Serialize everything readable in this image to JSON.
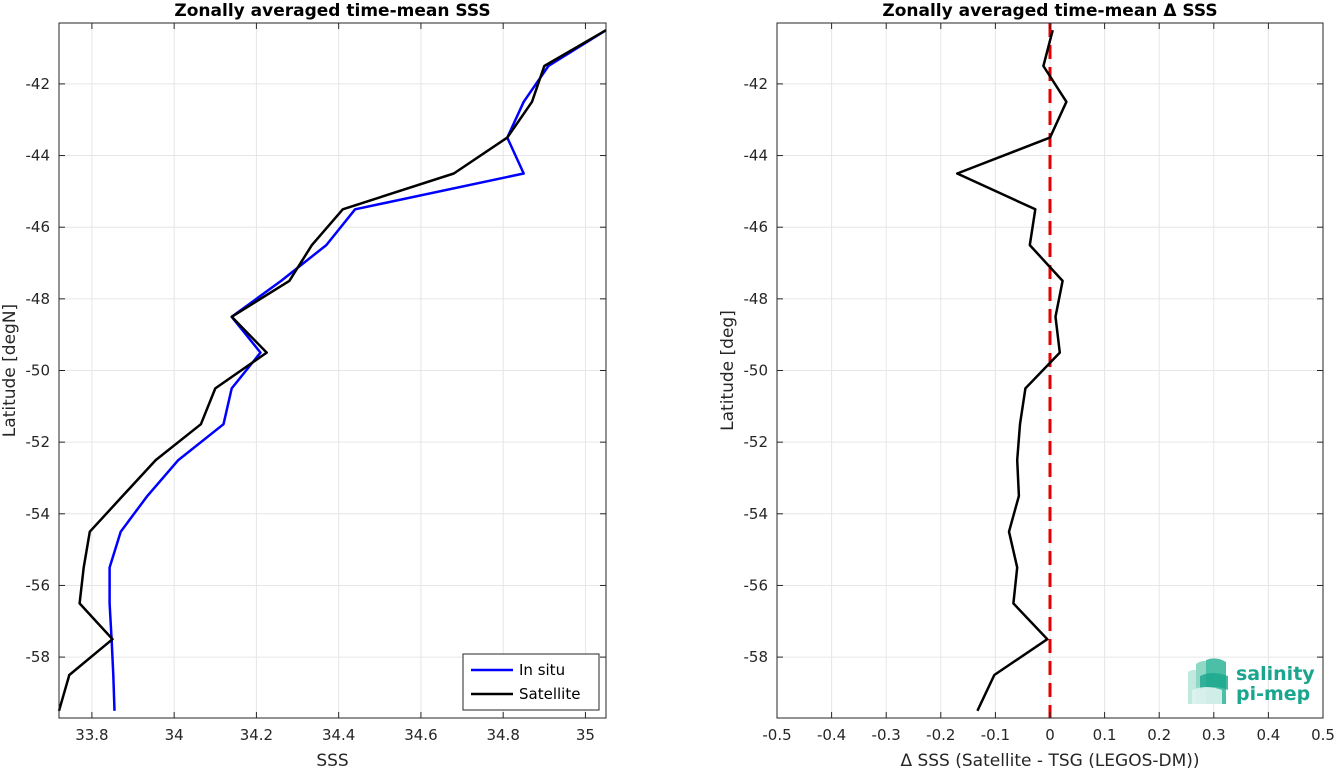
{
  "chart_data": [
    {
      "type": "line",
      "title": "Zonally averaged time-mean SSS",
      "xlabel": "SSS",
      "ylabel": "Latitude [degN]",
      "xlim": [
        33.72,
        35.05
      ],
      "ylim": [
        -59.7,
        -40.3
      ],
      "xticks": [
        33.8,
        34,
        34.2,
        34.4,
        34.6,
        34.8,
        35
      ],
      "xtick_labels": [
        "33.8",
        "34",
        "34.2",
        "34.4",
        "34.6",
        "34.8",
        "35"
      ],
      "yticks": [
        -58,
        -56,
        -54,
        -52,
        -50,
        -48,
        -46,
        -44,
        -42
      ],
      "ytick_labels": [
        "-58",
        "-56",
        "-54",
        "-52",
        "-50",
        "-48",
        "-46",
        "-44",
        "-42"
      ],
      "grid": true,
      "legend_position": "bottom-right",
      "series": [
        {
          "name": "In situ",
          "color": "#0000ff",
          "y": [
            -59.5,
            -58.5,
            -57.5,
            -56.5,
            -55.5,
            -54.5,
            -53.5,
            -52.5,
            -51.5,
            -50.5,
            -49.5,
            -48.5,
            -47.5,
            -46.5,
            -45.5,
            -44.5,
            -43.5,
            -42.5,
            -41.5,
            -40.5
          ],
          "x": [
            33.855,
            33.852,
            33.848,
            33.843,
            33.843,
            33.87,
            33.935,
            34.01,
            34.12,
            34.14,
            34.21,
            34.14,
            34.26,
            34.37,
            34.44,
            34.85,
            34.81,
            34.85,
            34.91,
            35.05
          ]
        },
        {
          "name": "Satellite",
          "color": "#000000",
          "y": [
            -59.5,
            -58.5,
            -57.5,
            -56.5,
            -55.5,
            -54.5,
            -53.5,
            -52.5,
            -51.5,
            -50.5,
            -49.5,
            -48.5,
            -47.5,
            -46.5,
            -45.5,
            -44.5,
            -43.5,
            -42.5,
            -41.5,
            -40.5
          ],
          "x": [
            33.72,
            33.745,
            33.85,
            33.77,
            33.78,
            33.795,
            33.875,
            33.955,
            34.065,
            34.1,
            34.225,
            34.14,
            34.28,
            34.335,
            34.41,
            34.68,
            34.81,
            34.87,
            34.9,
            35.05
          ]
        }
      ]
    },
    {
      "type": "line",
      "title": "Zonally averaged time-mean Δ SSS",
      "xlabel": "Δ SSS (Satellite - TSG (LEGOS-DM))",
      "ylabel": "Latitude [deg]",
      "xlim": [
        -0.5,
        0.5
      ],
      "ylim": [
        -59.7,
        -40.3
      ],
      "xticks": [
        -0.5,
        -0.4,
        -0.3,
        -0.2,
        -0.1,
        0,
        0.1,
        0.2,
        0.3,
        0.4,
        0.5
      ],
      "xtick_labels": [
        "-0.5",
        "-0.4",
        "-0.3",
        "-0.2",
        "-0.1",
        "0",
        "0.1",
        "0.2",
        "0.3",
        "0.4",
        "0.5"
      ],
      "yticks": [
        -58,
        -56,
        -54,
        -52,
        -50,
        -48,
        -46,
        -44,
        -42
      ],
      "ytick_labels": [
        "-58",
        "-56",
        "-54",
        "-52",
        "-50",
        "-48",
        "-46",
        "-44",
        "-42"
      ],
      "grid": true,
      "reference_line": {
        "x": 0,
        "color": "#e60000",
        "style": "dashed"
      },
      "series": [
        {
          "name": "",
          "color": "#000000",
          "y": [
            -59.5,
            -58.5,
            -57.5,
            -56.5,
            -55.5,
            -54.5,
            -53.5,
            -52.5,
            -51.5,
            -50.5,
            -49.5,
            -48.5,
            -47.5,
            -46.5,
            -45.5,
            -44.5,
            -43.5,
            -42.5,
            -41.5,
            -40.5
          ],
          "x": [
            -0.133,
            -0.102,
            -0.005,
            -0.067,
            -0.06,
            -0.075,
            -0.057,
            -0.06,
            -0.055,
            -0.045,
            0.018,
            0.01,
            0.023,
            -0.037,
            -0.027,
            -0.17,
            0.0,
            0.03,
            -0.012,
            0.005
          ]
        }
      ]
    }
  ],
  "logo": {
    "line1": "salinity",
    "line2": "pi-mep",
    "color": "#1aa68e"
  }
}
